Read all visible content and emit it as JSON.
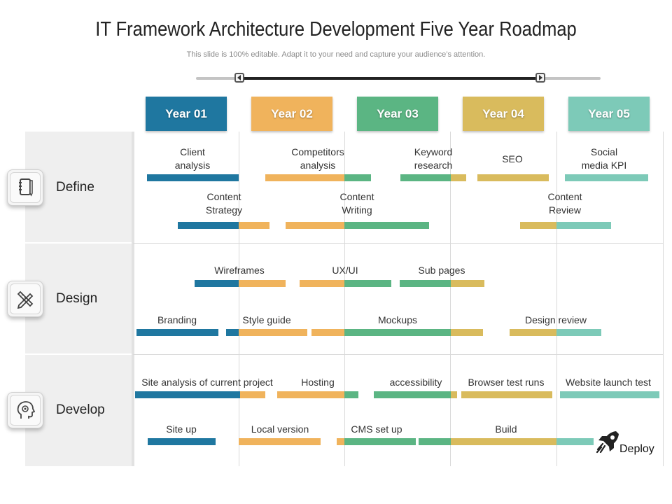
{
  "title": "IT Framework Architecture Development Five Year Roadmap",
  "subtitle": "This slide is 100% editable. Adapt it to your need and capture your audience’s attention.",
  "years": [
    {
      "label": "Year 01",
      "color": "#1f77a0"
    },
    {
      "label": "Year 02",
      "color": "#f0b35c"
    },
    {
      "label": "Year 03",
      "color": "#5bb583"
    },
    {
      "label": "Year 04",
      "color": "#d9bb5d"
    },
    {
      "label": "Year 05",
      "color": "#7dcab8"
    }
  ],
  "colors": {
    "year1": "#1f77a0",
    "year2": "#f0b35c",
    "year3": "#5bb583",
    "year4": "#d9bb5d",
    "year5": "#7dcab8"
  },
  "phases": [
    {
      "label": "Define",
      "icon": "notebook-icon"
    },
    {
      "label": "Design",
      "icon": "pencil-ruler-icon"
    },
    {
      "label": "Develop",
      "icon": "head-gear-icon"
    }
  ],
  "tasks": {
    "client_analysis": "Client\nanalysis",
    "competitors_analysis": "Competitors\nanalysis",
    "keyword_research": "Keyword\nresearch",
    "seo": "SEO",
    "social_media_kpi": "Social\nmedia KPI",
    "content_strategy": "Content\nStrategy",
    "content_writing": "Content\nWriting",
    "content_review": "Content\nReview",
    "wireframes": "Wireframes",
    "ux_ui": "UX/UI",
    "sub_pages": "Sub pages",
    "branding": "Branding",
    "style_guide": "Style guide",
    "mockups": "Mockups",
    "design_review": "Design review",
    "site_analysis": "Site analysis of current project",
    "hosting": "Hosting",
    "accessibility": "accessibility",
    "browser_test_runs": "Browser test runs",
    "website_launch_test": "Website launch test",
    "site_up": "Site up",
    "local_version": "Local version",
    "cms_set_up": "CMS set up",
    "build": "Build",
    "deploy": "Deploy"
  },
  "icons": {
    "deploy": "rocket-icon",
    "slider_left": "slider-left-handle",
    "slider_right": "slider-right-handle"
  }
}
